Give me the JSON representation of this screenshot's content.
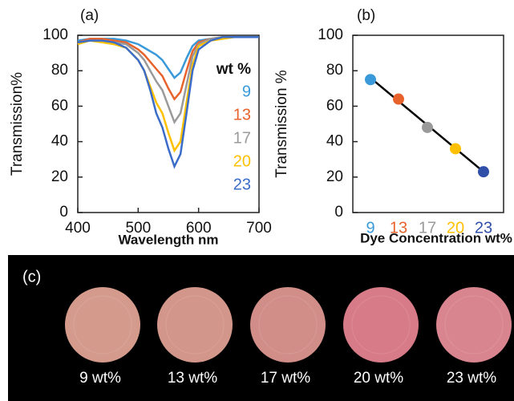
{
  "chart_data": [
    {
      "type": "line",
      "panel_label": "(a)",
      "x_label": "Wavelength nm",
      "y_label": "Transmission%",
      "legend_title": "wt %",
      "x": [
        400,
        420,
        440,
        460,
        480,
        500,
        510,
        520,
        530,
        540,
        550,
        560,
        570,
        580,
        590,
        600,
        620,
        640,
        660,
        680,
        700
      ],
      "series": [
        {
          "name": "9",
          "color": "#3a9ad9",
          "values": [
            97,
            98,
            98,
            98,
            97,
            95,
            93,
            91,
            89,
            86,
            81,
            76,
            79,
            87,
            94,
            97,
            98,
            99,
            99,
            99,
            99
          ]
        },
        {
          "name": "13",
          "color": "#e8632b",
          "values": [
            96,
            98,
            98,
            97,
            96,
            92,
            89,
            85,
            81,
            77,
            70,
            64,
            68,
            80,
            91,
            96,
            98,
            99,
            99,
            99,
            99
          ]
        },
        {
          "name": "17",
          "color": "#9a9a9a",
          "values": [
            96,
            97,
            97,
            96,
            95,
            90,
            86,
            80,
            74,
            69,
            60,
            51,
            56,
            72,
            88,
            95,
            98,
            99,
            99,
            99,
            99
          ]
        },
        {
          "name": "20",
          "color": "#ffc000",
          "values": [
            95,
            97,
            96,
            95,
            93,
            86,
            80,
            71,
            62,
            56,
            45,
            35,
            40,
            62,
            83,
            94,
            97,
            98,
            99,
            99,
            99
          ]
        },
        {
          "name": "23",
          "color": "#3a6cc8",
          "values": [
            96,
            97,
            97,
            96,
            93,
            86,
            80,
            69,
            56,
            48,
            36,
            26,
            33,
            56,
            80,
            92,
            97,
            99,
            99,
            99,
            99
          ]
        }
      ],
      "xlim": [
        400,
        700
      ],
      "xticks": [
        400,
        500,
        600,
        700
      ],
      "ylim": [
        0,
        100
      ],
      "yticks": [
        0,
        20,
        40,
        60,
        80,
        100
      ]
    },
    {
      "type": "scatter",
      "panel_label": "(b)",
      "x_label": "Dye Concentration wt%",
      "y_label": "Transmission %",
      "categories": [
        "9",
        "13",
        "17",
        "20",
        "23"
      ],
      "category_colors": [
        "#3a9ad9",
        "#e8632b",
        "#9a9a9a",
        "#ffc000",
        "#2f4fa8"
      ],
      "values": [
        75,
        64,
        48,
        36,
        23
      ],
      "fit_line": {
        "color": "#000000",
        "values": [
          76,
          23
        ]
      },
      "ylim": [
        0,
        100
      ],
      "yticks": [
        0,
        20,
        40,
        60,
        80,
        100
      ]
    }
  ],
  "photo_panel": {
    "label": "(c)",
    "samples": [
      {
        "label": "9 wt%",
        "color": "#d49a8c"
      },
      {
        "label": "13 wt%",
        "color": "#d3968a"
      },
      {
        "label": "17 wt%",
        "color": "#d18e88"
      },
      {
        "label": "20 wt%",
        "color": "#d87b88"
      },
      {
        "label": "23 wt%",
        "color": "#d9858f"
      }
    ]
  }
}
